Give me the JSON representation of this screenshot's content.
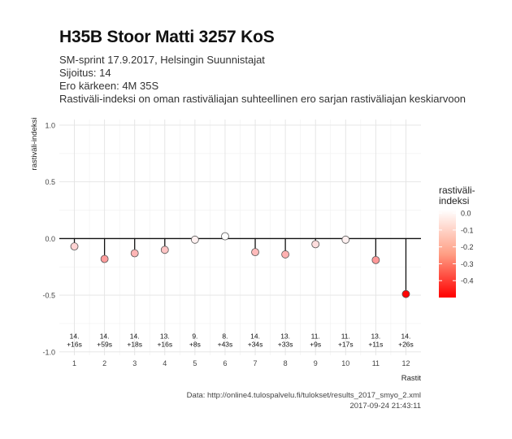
{
  "title": "H35B Stoor Matti 3257 KoS",
  "subtitle_lines": [
    "SM-sprint 17.9.2017, Helsingin Suunnistajat",
    "Sijoitus: 14",
    "Ero kärkeen: 4M 35S",
    "Rastiväli-indeksi on oman rastiväliajan suhteellinen ero sarjan rastiväliajan keskiarvoon"
  ],
  "caption": {
    "source": "Data: http://online4.tulospalvelu.fi/tulokset/results_2017_smyo_2.xml",
    "timestamp": "2017-09-24 21:43:11"
  },
  "chart_data": {
    "type": "scatter",
    "xlabel": "Rastit",
    "ylabel": "rastiväli-indeksi",
    "x": [
      1,
      2,
      3,
      4,
      5,
      6,
      7,
      8,
      9,
      10,
      11,
      12
    ],
    "values": [
      -0.07,
      -0.18,
      -0.13,
      -0.1,
      -0.01,
      0.02,
      -0.12,
      -0.14,
      -0.05,
      -0.01,
      -0.19,
      -0.49
    ],
    "xticks": [
      "1",
      "2",
      "3",
      "4",
      "5",
      "6",
      "7",
      "8",
      "9",
      "10",
      "11",
      "12"
    ],
    "yticks": [
      "1.0",
      "0.5",
      "0.0",
      "-0.5",
      "-1.0"
    ],
    "ytick_values": [
      1.0,
      0.5,
      0.0,
      -0.5,
      -1.0
    ],
    "ylim": [
      -1.03,
      1.05
    ],
    "xlim": [
      0.5,
      12.5
    ],
    "point_labels": [
      [
        "14.",
        "+16s"
      ],
      [
        "14.",
        "+59s"
      ],
      [
        "14.",
        "+18s"
      ],
      [
        "13.",
        "+16s"
      ],
      [
        "9.",
        "+8s"
      ],
      [
        "8.",
        "+43s"
      ],
      [
        "14.",
        "+34s"
      ],
      [
        "13.",
        "+33s"
      ],
      [
        "11.",
        "+9s"
      ],
      [
        "11.",
        "+17s"
      ],
      [
        "13.",
        "+11s"
      ],
      [
        "14.",
        "+26s"
      ]
    ],
    "point_label_y": -0.91,
    "grid": true,
    "legend": {
      "title_lines": [
        "rastiväli-",
        "indeksi"
      ],
      "ticks": [
        "0.0",
        "-0.1",
        "-0.2",
        "-0.3",
        "-0.4"
      ],
      "tick_values": [
        0.0,
        -0.1,
        -0.2,
        -0.3,
        -0.4
      ],
      "range": [
        -0.5,
        0.02
      ],
      "placement": "right",
      "color_low": "#ff0000",
      "color_high": "#ffffff"
    }
  }
}
